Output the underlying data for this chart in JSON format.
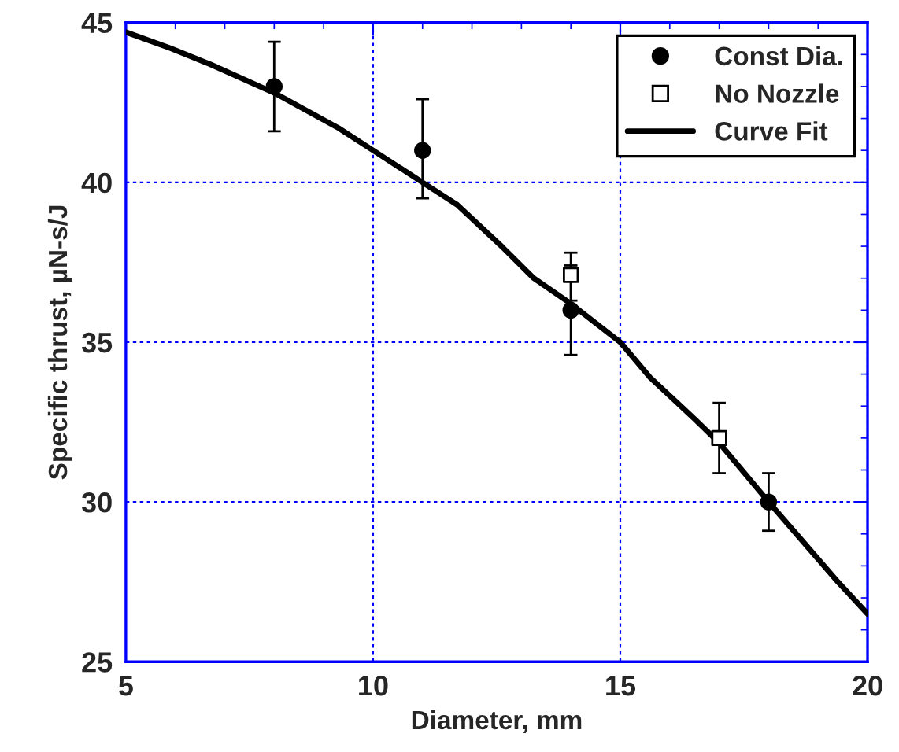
{
  "chart_data": {
    "type": "scatter",
    "xlabel": "Diameter, mm",
    "ylabel": "Specific thrust, µN-s/J",
    "xlim": [
      5,
      20
    ],
    "ylim": [
      25,
      45
    ],
    "xticks": [
      5,
      {
        "value": 6,
        "label": null
      },
      {
        "value": 7,
        "label": null
      },
      {
        "value": 8,
        "label": null
      },
      {
        "value": 9,
        "label": null
      },
      10,
      {
        "value": 11,
        "label": null
      },
      {
        "value": 12,
        "label": null
      },
      {
        "value": 13,
        "label": null
      },
      {
        "value": 14,
        "label": null
      },
      15,
      {
        "value": 16,
        "label": null
      },
      {
        "value": 17,
        "label": null
      },
      {
        "value": 18,
        "label": null
      },
      {
        "value": 19,
        "label": null
      },
      20
    ],
    "yticks": [
      25,
      {
        "value": 26,
        "label": null
      },
      {
        "value": 27,
        "label": null
      },
      {
        "value": 28,
        "label": null
      },
      {
        "value": 29,
        "label": null
      },
      30,
      {
        "value": 31,
        "label": null
      },
      {
        "value": 32,
        "label": null
      },
      {
        "value": 33,
        "label": null
      },
      {
        "value": 34,
        "label": null
      },
      35,
      {
        "value": 36,
        "label": null
      },
      {
        "value": 37,
        "label": null
      },
      {
        "value": 38,
        "label": null
      },
      {
        "value": 39,
        "label": null
      },
      40,
      {
        "value": 41,
        "label": null
      },
      {
        "value": 42,
        "label": null
      },
      {
        "value": 43,
        "label": null
      },
      {
        "value": 44,
        "label": null
      },
      45
    ],
    "grid": true,
    "legend": "top right",
    "series": [
      {
        "name": "Const Dia.",
        "marker": "circle",
        "color": "#000000",
        "x": [
          8,
          11,
          14,
          18
        ],
        "values": [
          43.0,
          41.0,
          36.0,
          30.0
        ],
        "errors": [
          [
            41.6,
            44.4
          ],
          [
            39.5,
            42.6
          ],
          [
            34.6,
            37.4
          ],
          [
            29.1,
            30.9
          ]
        ]
      },
      {
        "name": "No Nozzle",
        "marker": "square",
        "color": "#000000",
        "x": [
          14,
          17
        ],
        "values": [
          37.1,
          32.0
        ],
        "errors": [
          [
            36.3,
            37.8
          ],
          [
            30.9,
            33.1
          ]
        ]
      },
      {
        "name": "Curve Fit",
        "type": "line",
        "marker": "none",
        "color": "#000000",
        "x": [
          5,
          5.9,
          6.7,
          8,
          9.3,
          10,
          11,
          11.7,
          12.6,
          13.25,
          14,
          15,
          15.6,
          16.5,
          17,
          18,
          19.4,
          20
        ],
        "values": [
          44.7,
          44.2,
          43.7,
          42.8,
          41.7,
          41.0,
          40.0,
          39.3,
          38.0,
          37.0,
          36.2,
          35.0,
          33.9,
          32.6,
          31.85,
          30.0,
          27.5,
          26.5
        ]
      }
    ]
  }
}
